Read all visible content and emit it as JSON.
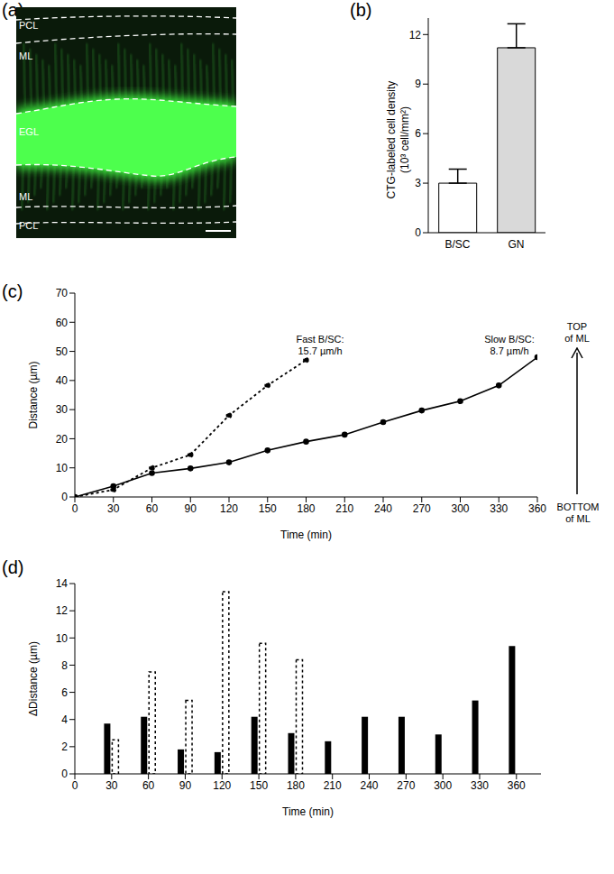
{
  "image": {
    "title": "(a)",
    "labels": [
      "PCL",
      "ML",
      "EGL",
      "ML",
      "PCL"
    ]
  },
  "chart_data": [
    {
      "type": "bar",
      "title": "(b)",
      "categories": [
        "B/SC",
        "GN"
      ],
      "values": [
        3.0,
        11.2
      ],
      "errors": [
        0.85,
        1.45
      ],
      "colors": [
        "#ffffff",
        "#d9d9d9"
      ],
      "ylabel": [
        "CTG-labeled cell density",
        "(10³ cell/mm²)"
      ],
      "ylim": [
        0,
        13
      ],
      "yticks": [
        0,
        3,
        6,
        9,
        12
      ]
    },
    {
      "type": "line",
      "title": "(c)",
      "x": [
        0,
        30,
        60,
        90,
        120,
        150,
        180,
        210,
        240,
        270,
        300,
        330,
        360
      ],
      "series": [
        {
          "color": "#000000",
          "line_style": "dotted",
          "marker": "circle",
          "values": [
            0,
            2.5,
            10,
            14.5,
            28,
            38.3,
            47,
            null,
            null,
            null,
            null,
            null,
            null
          ]
        },
        {
          "color": "#000000",
          "line_style": "solid",
          "marker": "circle",
          "values": [
            0,
            3.7,
            8.2,
            9.8,
            11.9,
            16,
            19,
            21.4,
            25.7,
            29.7,
            32.9,
            38.3,
            48
          ]
        }
      ],
      "xlabel": "Time (min)",
      "ylabel": "Distance (µm)",
      "xlim": [
        0,
        360
      ],
      "xticks": [
        0,
        30,
        60,
        90,
        120,
        150,
        180,
        210,
        240,
        270,
        300,
        330,
        360
      ],
      "ylim": [
        0,
        70
      ],
      "yticks": [
        0,
        10,
        20,
        30,
        40,
        50,
        60,
        70
      ],
      "annotations": [
        "Fast B/SC:\n15.7 µm/h",
        "Slow B/SC:\n8.7 µm/h",
        "TOP\nof ML",
        "BOTTOM\nof ML"
      ]
    },
    {
      "type": "bar",
      "title": "(d)",
      "x": [
        30,
        60,
        90,
        120,
        150,
        180,
        210,
        240,
        270,
        300,
        330,
        360
      ],
      "series": [
        {
          "color": "#000000",
          "line_style": "solid",
          "values": [
            3.7,
            4.2,
            1.8,
            1.6,
            4.2,
            3.0,
            2.4,
            4.2,
            4.2,
            2.9,
            5.4,
            9.4
          ]
        },
        {
          "color": "#ffffff",
          "line_style": "dotted",
          "values": [
            2.5,
            7.5,
            5.4,
            13.4,
            9.6,
            8.4,
            null,
            null,
            null,
            null,
            null,
            null
          ]
        }
      ],
      "xlabel": "Time (min)",
      "ylabel": "ΔDistance (µm)",
      "xlim": [
        0,
        380
      ],
      "xticks": [
        0,
        30,
        60,
        90,
        120,
        150,
        180,
        210,
        240,
        270,
        300,
        330,
        360
      ],
      "ylim": [
        0,
        14
      ],
      "yticks": [
        0,
        2,
        4,
        6,
        8,
        10,
        12,
        14
      ]
    }
  ]
}
